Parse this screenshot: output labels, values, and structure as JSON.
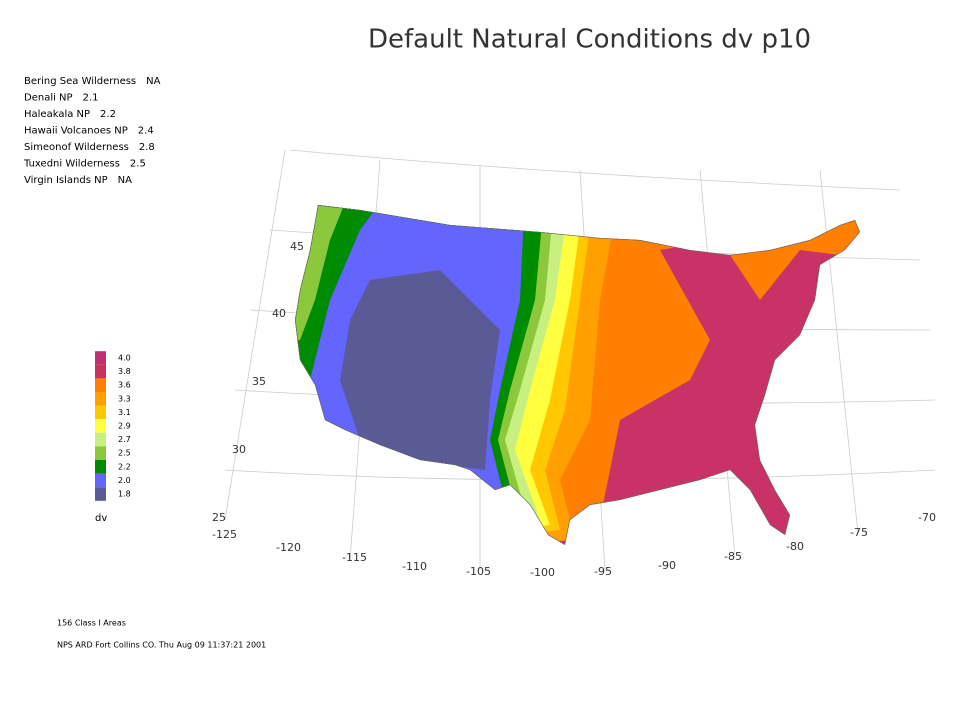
{
  "title": "Default Natural Conditions dv p10",
  "sites": [
    {
      "name": "Bering Sea Wilderness",
      "value": "NA"
    },
    {
      "name": "Denali NP",
      "value": 2.1
    },
    {
      "name": "Haleakala NP",
      "value": 2.2
    },
    {
      "name": "Hawaii Volcanoes NP",
      "value": 2.4
    },
    {
      "name": "Simeonof Wilderness",
      "value": 2.8
    },
    {
      "name": "Tuxedni Wilderness",
      "value": 2.5
    },
    {
      "name": "Virgin Islands NP",
      "value": "NA"
    }
  ],
  "legend": {
    "levels": [
      {
        "value": 4,
        "label": "4.0"
      },
      3.8,
      3.6,
      3.3,
      3.1,
      2.9,
      2.7,
      2.5,
      2.2,
      {
        "value": 2,
        "label": "2.0"
      },
      1.8
    ],
    "colors": [
      "#c03070",
      "#c83260",
      "#ff8000",
      "#ffa000",
      "#ffc800",
      "#ffff40",
      "#c8f080",
      "#8cc83c",
      "#008c00",
      "#6464ff",
      "#5a5a96"
    ],
    "unit": "dv"
  },
  "latitudes": [
    45,
    40,
    35,
    30,
    25
  ],
  "longitudes": [
    -125,
    -120,
    -115,
    -110,
    -105,
    -100,
    -95,
    -90,
    -85,
    -80,
    -75,
    -70
  ],
  "footer": {
    "count": "156 Class I Areas",
    "credit": "NPS ARD Fort Collins CO. Thu Aug 09 11:37:21 2001"
  }
}
